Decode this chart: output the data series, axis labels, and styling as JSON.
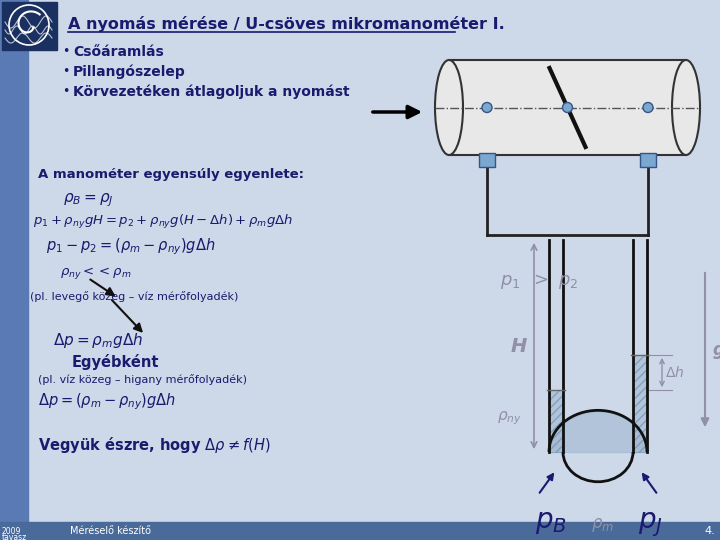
{
  "slide_bg": "#cdd8e8",
  "sidebar_color": "#5a7ab5",
  "title": "A nyomás mérése / U-csöves mikromanométer I.",
  "title_color": "#1a1a6e",
  "bullets": [
    "Csőáramlás",
    "Pillangószelep",
    "Körvezetéken átlagoljuk a nyomást"
  ],
  "bullet_color": "#1a1a6e",
  "text_color": "#1a1a6e",
  "gray_color": "#9090a8",
  "footer_left": "2009\ntavasz",
  "footer_center": "Méréselő készítő",
  "footer_right": "4."
}
